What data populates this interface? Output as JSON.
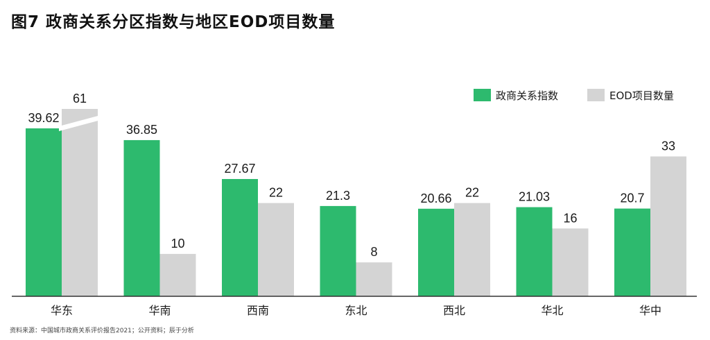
{
  "title": "图7 政商关系分区指数与地区EOD项目数量",
  "source": "资料来源：中国城市政商关系评价报告2021；公开资料；辰于分析",
  "colors": {
    "green": "#2dba6e",
    "gray": "#d4d4d4",
    "axis": "#333333"
  },
  "chart_data": {
    "type": "bar",
    "categories": [
      "华东",
      "华南",
      "西南",
      "东北",
      "西北",
      "华北",
      "华中"
    ],
    "series": [
      {
        "name": "政商关系指数",
        "values": [
          39.62,
          36.85,
          27.67,
          21.3,
          20.66,
          21.03,
          20.7
        ],
        "labels": [
          "39.62",
          "36.85",
          "27.67",
          "21.3",
          "20.66",
          "21.03",
          "20.7"
        ]
      },
      {
        "name": "EOD项目数量",
        "values": [
          61,
          10,
          22,
          8,
          22,
          16,
          33
        ],
        "labels": [
          "61",
          "10",
          "22",
          "8",
          "22",
          "16",
          "33"
        ]
      }
    ],
    "axis_break": {
      "series": 1,
      "category": 0
    },
    "legend": "top-right",
    "grid": false
  }
}
